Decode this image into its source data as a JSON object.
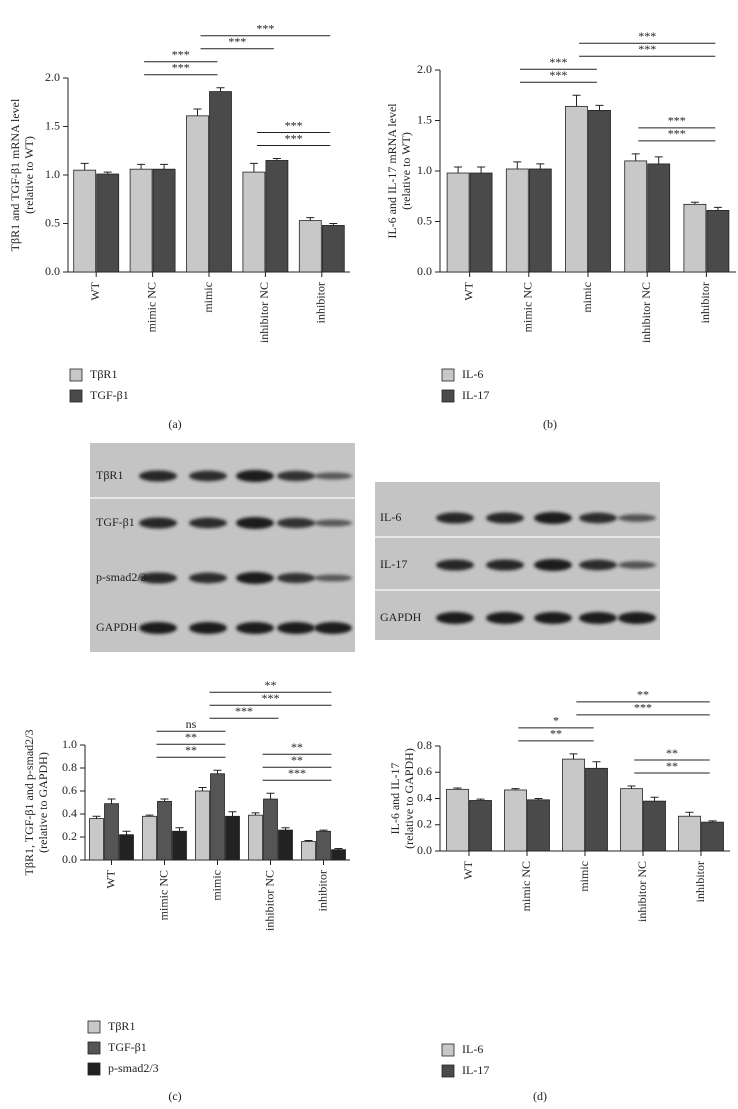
{
  "chart_data": [
    {
      "type": "bar",
      "caption": "(a)",
      "y_label": [
        "TβR1 and TGF-β1 mRNA level",
        "(relative to WT)"
      ],
      "categories": [
        "WT",
        "mimic NC",
        "mimic",
        "inhibitor NC",
        "inhibitor"
      ],
      "series": [
        {
          "name": "TβR1",
          "color": "#c8c8c8",
          "values": [
            1.05,
            1.06,
            1.61,
            1.03,
            0.53
          ],
          "errors": [
            0.07,
            0.05,
            0.07,
            0.09,
            0.03
          ]
        },
        {
          "name": "TGF-β1",
          "color": "#4a4a4a",
          "values": [
            1.01,
            1.06,
            1.86,
            1.15,
            0.48
          ],
          "errors": [
            0.02,
            0.05,
            0.04,
            0.02,
            0.02
          ]
        }
      ],
      "ylim": [
        0,
        2.0
      ],
      "yticks": [
        {
          "value": 0,
          "label": "0.0"
        },
        0.5,
        {
          "value": 1,
          "label": "1.0"
        },
        1.5,
        {
          "value": 2,
          "label": "2.0"
        }
      ],
      "annotations": [
        {
          "text": "***",
          "from": "mimic NC",
          "to": "mimic"
        },
        {
          "text": "***",
          "from": "mimic NC",
          "to": "mimic"
        },
        {
          "text": "***",
          "from": "inhibitor NC",
          "to": "inhibitor"
        },
        {
          "text": "***",
          "from": "inhibitor NC",
          "to": "inhibitor"
        },
        {
          "text": "***",
          "from": "mimic",
          "to": "inhibitor NC"
        },
        {
          "text": "***",
          "from": "mimic",
          "to": "inhibitor"
        }
      ]
    },
    {
      "type": "bar",
      "caption": "(b)",
      "y_label": [
        "IL-6 and IL-17 mRNA level",
        "(relative to WT)"
      ],
      "categories": [
        "WT",
        "mimic NC",
        "mimic",
        "inhibitor NC",
        "inhibitor"
      ],
      "series": [
        {
          "name": "IL-6",
          "color": "#c8c8c8",
          "values": [
            0.98,
            1.02,
            1.64,
            1.1,
            0.67
          ],
          "errors": [
            0.06,
            0.07,
            0.11,
            0.07,
            0.02
          ]
        },
        {
          "name": "IL-17",
          "color": "#4a4a4a",
          "values": [
            0.98,
            1.02,
            1.6,
            1.07,
            0.61
          ],
          "errors": [
            0.06,
            0.05,
            0.05,
            0.07,
            0.03
          ]
        }
      ],
      "ylim": [
        0,
        2.0
      ],
      "yticks": [
        {
          "value": 0,
          "label": "0.0"
        },
        0.5,
        {
          "value": 1,
          "label": "1.0"
        },
        1.5,
        {
          "value": 2,
          "label": "2.0"
        }
      ],
      "annotations": [
        {
          "text": "***",
          "from": "mimic NC",
          "to": "mimic"
        },
        {
          "text": "***",
          "from": "mimic NC",
          "to": "mimic"
        },
        {
          "text": "***",
          "from": "inhibitor NC",
          "to": "inhibitor"
        },
        {
          "text": "***",
          "from": "inhibitor NC",
          "to": "inhibitor"
        },
        {
          "text": "***",
          "from": "mimic",
          "to": "inhibitor"
        },
        {
          "text": "***",
          "from": "mimic",
          "to": "inhibitor"
        }
      ]
    },
    {
      "type": "bar",
      "caption": "(c)",
      "y_label": [
        "TβR1, TGF-β1 and p-smad2/3",
        "(relative to GAPDH)"
      ],
      "categories": [
        "WT",
        "mimic NC",
        "mimic",
        "inhibitor NC",
        "inhibitor"
      ],
      "series": [
        {
          "name": "TβR1",
          "color": "#c8c8c8",
          "values": [
            0.36,
            0.38,
            0.6,
            0.39,
            0.16
          ],
          "errors": [
            0.02,
            0.01,
            0.03,
            0.02,
            0.01
          ]
        },
        {
          "name": "TGF-β1",
          "color": "#555555",
          "values": [
            0.49,
            0.51,
            0.75,
            0.53,
            0.25
          ],
          "errors": [
            0.04,
            0.02,
            0.03,
            0.05,
            0.01
          ]
        },
        {
          "name": "p-smad2/3",
          "color": "#222222",
          "values": [
            0.22,
            0.25,
            0.38,
            0.26,
            0.09
          ],
          "errors": [
            0.03,
            0.03,
            0.04,
            0.02,
            0.01
          ]
        }
      ],
      "ylim": [
        0,
        1.0
      ],
      "yticks": [
        {
          "value": 0,
          "label": "0.0"
        },
        0.2,
        0.4,
        0.6,
        0.8,
        {
          "value": 1,
          "label": "1.0"
        }
      ],
      "annotations": [
        {
          "text": "**",
          "from": "mimic NC",
          "to": "mimic"
        },
        {
          "text": "**",
          "from": "mimic NC",
          "to": "mimic"
        },
        {
          "text": "ns",
          "from": "mimic NC",
          "to": "mimic"
        },
        {
          "text": "***",
          "from": "inhibitor NC",
          "to": "inhibitor"
        },
        {
          "text": "**",
          "from": "inhibitor NC",
          "to": "inhibitor"
        },
        {
          "text": "**",
          "from": "inhibitor NC",
          "to": "inhibitor"
        },
        {
          "text": "***",
          "from": "mimic",
          "to": "inhibitor NC"
        },
        {
          "text": "***",
          "from": "mimic",
          "to": "inhibitor"
        },
        {
          "text": "**",
          "from": "mimic",
          "to": "inhibitor"
        }
      ]
    },
    {
      "type": "bar",
      "caption": "(d)",
      "y_label": [
        "IL-6 and IL-17",
        "(relative to GAPDH)"
      ],
      "categories": [
        "WT",
        "mimic NC",
        "mimic",
        "inhibitor NC",
        "inhibitor"
      ],
      "series": [
        {
          "name": "IL-6",
          "color": "#c8c8c8",
          "values": [
            0.47,
            0.465,
            0.7,
            0.475,
            0.265
          ],
          "errors": [
            0.01,
            0.01,
            0.04,
            0.02,
            0.03
          ]
        },
        {
          "name": "IL-17",
          "color": "#4a4a4a",
          "values": [
            0.385,
            0.39,
            0.63,
            0.38,
            0.22
          ],
          "errors": [
            0.01,
            0.01,
            0.05,
            0.03,
            0.01
          ]
        }
      ],
      "ylim": [
        0,
        0.8
      ],
      "yticks": [
        {
          "value": 0,
          "label": "0.0"
        },
        0.2,
        0.4,
        0.6,
        0.8
      ],
      "annotations": [
        {
          "text": "**",
          "from": "mimic NC",
          "to": "mimic"
        },
        {
          "text": "*",
          "from": "mimic NC",
          "to": "mimic"
        },
        {
          "text": "**",
          "from": "inhibitor NC",
          "to": "inhibitor"
        },
        {
          "text": "**",
          "from": "inhibitor NC",
          "to": "inhibitor"
        },
        {
          "text": "***",
          "from": "mimic",
          "to": "inhibitor"
        },
        {
          "text": "**",
          "from": "mimic",
          "to": "inhibitor"
        }
      ]
    }
  ],
  "blots": [
    {
      "labels": [
        "TβR1",
        "TGF-β1",
        "p-smad2/3",
        "GAPDH"
      ]
    },
    {
      "labels": [
        "IL-6",
        "IL-17",
        "GAPDH"
      ]
    }
  ]
}
